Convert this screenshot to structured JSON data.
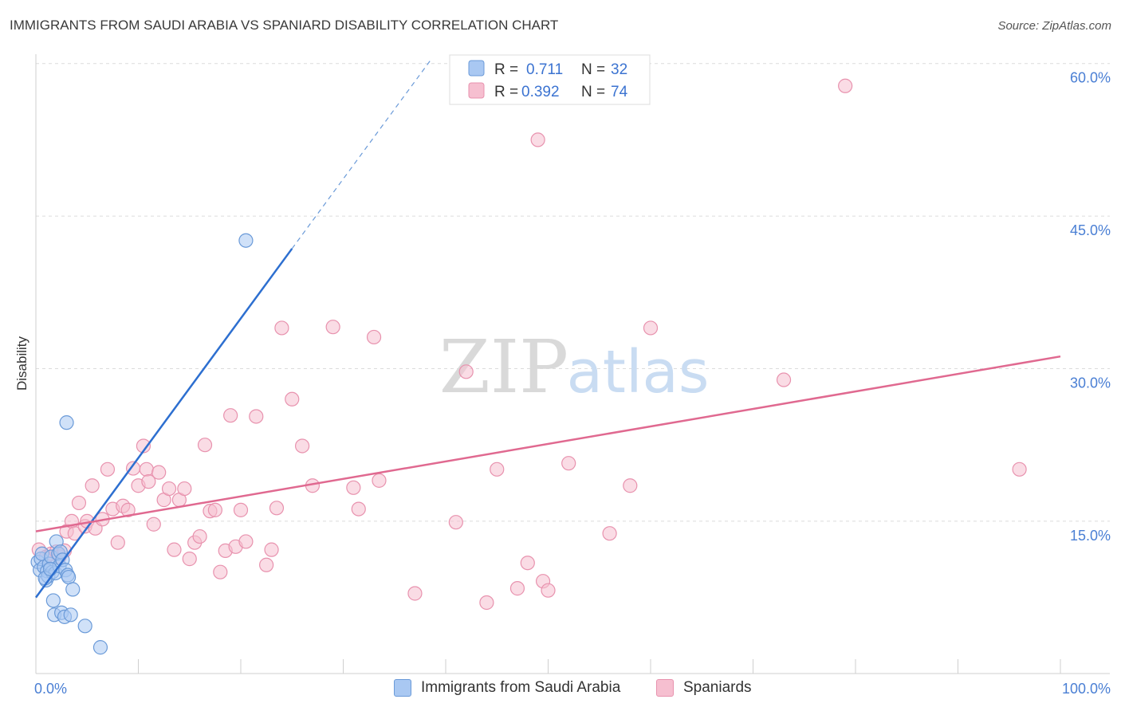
{
  "title": "IMMIGRANTS FROM SAUDI ARABIA VS SPANIARD DISABILITY CORRELATION CHART",
  "source": "Source: ZipAtlas.com",
  "watermark": {
    "zip": "ZIP",
    "atlas": "atlas"
  },
  "colors": {
    "blue_fill": "#a9c8f2",
    "blue_stroke": "#6a9ad8",
    "blue_line": "#2d6fd0",
    "pink_fill": "#f6bfd0",
    "pink_stroke": "#e892ae",
    "pink_line": "#e06990",
    "tick_label": "#4a7fd4",
    "grid": "#dcdcdc"
  },
  "chart_data": {
    "type": "scatter",
    "title": "IMMIGRANTS FROM SAUDI ARABIA VS SPANIARD DISABILITY CORRELATION CHART",
    "xlabel": "",
    "ylabel": "Disability",
    "xlim": [
      0,
      100
    ],
    "ylim": [
      0,
      60
    ],
    "x_tick_labels": [
      "0.0%",
      "100.0%"
    ],
    "y_ticks": [
      {
        "value": 15,
        "label": "15.0%"
      },
      {
        "value": 30,
        "label": "30.0%"
      },
      {
        "value": 45,
        "label": "45.0%"
      },
      {
        "value": 60,
        "label": "60.0%"
      }
    ],
    "legend": {
      "position": "top-center",
      "rows": [
        {
          "r_label": "R =",
          "r_value": "0.711",
          "n_label": "N =",
          "n_value": "32"
        },
        {
          "r_label": "R =",
          "r_value": "0.392",
          "n_label": "N =",
          "n_value": "74"
        }
      ]
    },
    "series": [
      {
        "name": "Immigrants from Saudi Arabia",
        "color": "blue",
        "r": 0.711,
        "n": 32,
        "trend": {
          "x0": 0,
          "y0": 7.5,
          "x1": 25,
          "y1": 41.8,
          "dash_to_x": 38.5,
          "dash_to_y": 60.3
        },
        "points": [
          [
            0.2,
            11.0
          ],
          [
            0.4,
            10.2
          ],
          [
            0.5,
            11.3
          ],
          [
            0.6,
            11.8
          ],
          [
            0.8,
            10.5
          ],
          [
            1.0,
            9.2
          ],
          [
            1.1,
            10.1
          ],
          [
            1.2,
            9.6
          ],
          [
            1.3,
            10.8
          ],
          [
            1.5,
            11.5
          ],
          [
            1.6,
            10.0
          ],
          [
            1.7,
            7.2
          ],
          [
            1.8,
            5.8
          ],
          [
            1.9,
            9.9
          ],
          [
            2.0,
            13.0
          ],
          [
            2.2,
            11.8
          ],
          [
            2.3,
            10.6
          ],
          [
            2.4,
            12.0
          ],
          [
            2.5,
            6.0
          ],
          [
            2.6,
            11.2
          ],
          [
            2.8,
            5.6
          ],
          [
            2.9,
            10.2
          ],
          [
            3.0,
            24.7
          ],
          [
            3.1,
            9.7
          ],
          [
            3.2,
            9.5
          ],
          [
            3.4,
            5.8
          ],
          [
            3.6,
            8.3
          ],
          [
            4.8,
            4.7
          ],
          [
            6.3,
            2.6
          ],
          [
            20.5,
            42.6
          ],
          [
            0.9,
            9.4
          ],
          [
            1.4,
            10.3
          ]
        ]
      },
      {
        "name": "Spaniards",
        "color": "pink",
        "r": 0.392,
        "n": 74,
        "trend": {
          "x0": 0,
          "y0": 14.0,
          "x1": 100,
          "y1": 31.2
        },
        "points": [
          [
            0.3,
            12.2
          ],
          [
            1.0,
            11.5
          ],
          [
            1.5,
            11.8
          ],
          [
            2.0,
            12.0
          ],
          [
            2.3,
            11.5
          ],
          [
            2.8,
            12.1
          ],
          [
            3.0,
            14.0
          ],
          [
            3.5,
            15.0
          ],
          [
            3.8,
            13.8
          ],
          [
            4.2,
            16.8
          ],
          [
            4.8,
            14.5
          ],
          [
            5.0,
            15.0
          ],
          [
            5.5,
            18.5
          ],
          [
            5.8,
            14.3
          ],
          [
            6.5,
            15.2
          ],
          [
            7.0,
            20.1
          ],
          [
            7.5,
            16.2
          ],
          [
            8.0,
            12.9
          ],
          [
            8.5,
            16.5
          ],
          [
            9.0,
            16.1
          ],
          [
            9.5,
            20.2
          ],
          [
            10.0,
            18.5
          ],
          [
            10.5,
            22.4
          ],
          [
            10.8,
            20.1
          ],
          [
            11.0,
            18.9
          ],
          [
            11.5,
            14.7
          ],
          [
            12.0,
            19.8
          ],
          [
            12.5,
            17.1
          ],
          [
            13.0,
            18.2
          ],
          [
            13.5,
            12.2
          ],
          [
            14.0,
            17.1
          ],
          [
            14.5,
            18.2
          ],
          [
            15.0,
            11.3
          ],
          [
            15.5,
            12.9
          ],
          [
            16.0,
            13.5
          ],
          [
            16.5,
            22.5
          ],
          [
            17.0,
            16.0
          ],
          [
            17.5,
            16.1
          ],
          [
            18.0,
            10.0
          ],
          [
            18.5,
            12.1
          ],
          [
            19.0,
            25.4
          ],
          [
            19.5,
            12.5
          ],
          [
            20.0,
            16.1
          ],
          [
            20.5,
            13.0
          ],
          [
            21.5,
            25.3
          ],
          [
            22.5,
            10.7
          ],
          [
            23.0,
            12.2
          ],
          [
            23.5,
            16.3
          ],
          [
            24.0,
            34.0
          ],
          [
            25.0,
            27.0
          ],
          [
            26.0,
            22.4
          ],
          [
            27.0,
            18.5
          ],
          [
            29.0,
            34.1
          ],
          [
            31.0,
            18.3
          ],
          [
            31.5,
            16.2
          ],
          [
            33.0,
            33.1
          ],
          [
            33.5,
            19.0
          ],
          [
            37.0,
            7.9
          ],
          [
            42.0,
            29.7
          ],
          [
            41.0,
            14.9
          ],
          [
            44.0,
            7.0
          ],
          [
            45.0,
            20.1
          ],
          [
            47.0,
            8.4
          ],
          [
            48.0,
            10.9
          ],
          [
            49.0,
            52.5
          ],
          [
            49.5,
            9.1
          ],
          [
            50.0,
            8.2
          ],
          [
            52.0,
            20.7
          ],
          [
            56.0,
            13.8
          ],
          [
            58.0,
            18.5
          ],
          [
            60.0,
            34.0
          ],
          [
            73.0,
            28.9
          ],
          [
            79.0,
            57.8
          ],
          [
            96.0,
            20.1
          ]
        ]
      }
    ]
  }
}
